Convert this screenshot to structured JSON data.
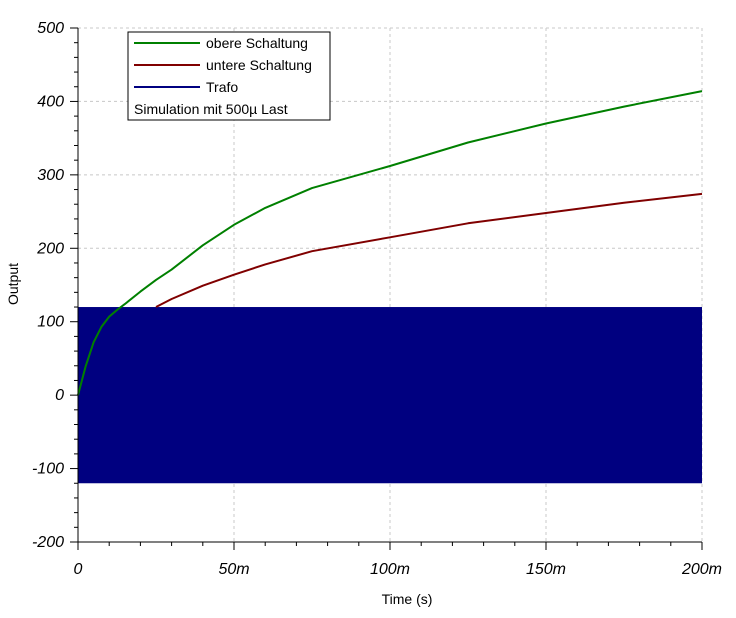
{
  "chart_data": {
    "type": "line",
    "xlabel": "Time (s)",
    "ylabel": "Output",
    "xlim": [
      0,
      0.2
    ],
    "ylim": [
      -200,
      500
    ],
    "x_ticks": [
      0,
      0.05,
      0.1,
      0.15,
      0.2
    ],
    "x_tick_labels": [
      "0",
      "50m",
      "100m",
      "150m",
      "200m"
    ],
    "y_ticks": [
      -200,
      -100,
      0,
      100,
      200,
      300,
      400,
      500
    ],
    "y_tick_labels": [
      "-200",
      "-100",
      "0",
      "100",
      "200",
      "300",
      "400",
      "500"
    ],
    "grid": true,
    "legend_position": "top-left",
    "legend_note": "Simulation mit 500µ Last",
    "series": [
      {
        "name": "obere Schaltung",
        "color": "#008000",
        "x": [
          0,
          0.0025,
          0.005,
          0.0075,
          0.01,
          0.0125,
          0.015,
          0.02,
          0.025,
          0.03,
          0.04,
          0.05,
          0.06,
          0.075,
          0.1,
          0.125,
          0.15,
          0.175,
          0.2
        ],
        "y": [
          0,
          40,
          72,
          93,
          107,
          116,
          124,
          141,
          157,
          171,
          204,
          232,
          255,
          282,
          312,
          344,
          370,
          393,
          414
        ]
      },
      {
        "name": "untere Schaltung",
        "color": "#800000",
        "x": [
          0.025,
          0.03,
          0.04,
          0.05,
          0.06,
          0.075,
          0.1,
          0.125,
          0.15,
          0.175,
          0.2
        ],
        "y": [
          120,
          131,
          149,
          164,
          178,
          196,
          215,
          234,
          248,
          262,
          274
        ]
      },
      {
        "name": "Trafo",
        "color": "#000080",
        "fill_band": [
          -120,
          120
        ],
        "x": [
          0,
          0.2
        ],
        "y_min": [
          -120,
          -120
        ],
        "y_max": [
          120,
          120
        ]
      }
    ]
  }
}
